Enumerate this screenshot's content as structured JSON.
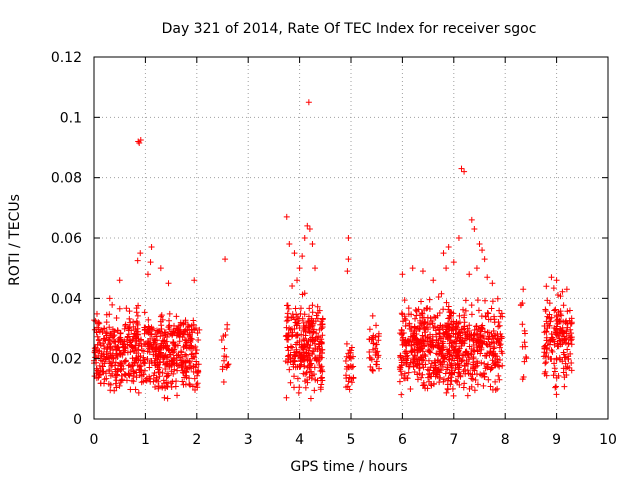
{
  "chart_data": {
    "type": "scatter",
    "title": "Day 321 of 2014, Rate Of TEC Index for receiver sgoc",
    "xlabel": "GPS time / hours",
    "ylabel": "ROTI / TECUs",
    "xlim": [
      0,
      10
    ],
    "ylim": [
      0,
      0.12
    ],
    "x_ticks": [
      "0",
      "1",
      "2",
      "3",
      "4",
      "5",
      "6",
      "7",
      "8",
      "9",
      "10"
    ],
    "y_ticks": [
      "0",
      "0.02",
      "0.04",
      "0.06",
      "0.08",
      "0.1",
      "0.12"
    ],
    "grid": true,
    "marker": "plus",
    "color": "#ff0000",
    "series": [
      {
        "name": "ROTI",
        "clusters": [
          {
            "x_range": [
              0.0,
              2.05
            ],
            "y_range": [
              0.005,
              0.04
            ],
            "count": 700
          },
          {
            "x_range": [
              2.48,
              2.62
            ],
            "y_range": [
              0.009,
              0.04
            ],
            "count": 16
          },
          {
            "x_range": [
              3.73,
              4.45
            ],
            "y_range": [
              0.005,
              0.045
            ],
            "count": 280
          },
          {
            "x_range": [
              4.9,
              5.05
            ],
            "y_range": [
              0.008,
              0.028
            ],
            "count": 30
          },
          {
            "x_range": [
              5.35,
              5.55
            ],
            "y_range": [
              0.01,
              0.037
            ],
            "count": 36
          },
          {
            "x_range": [
              5.95,
              7.95
            ],
            "y_range": [
              0.005,
              0.042
            ],
            "count": 750
          },
          {
            "x_range": [
              8.3,
              8.42
            ],
            "y_range": [
              0.009,
              0.043
            ],
            "count": 14
          },
          {
            "x_range": [
              8.75,
              9.3
            ],
            "y_range": [
              0.006,
              0.045
            ],
            "count": 170
          }
        ],
        "highlights": [
          {
            "x": 0.86,
            "y": 0.092
          },
          {
            "x": 0.88,
            "y": 0.0915
          },
          {
            "x": 0.91,
            "y": 0.0925
          },
          {
            "x": 0.85,
            "y": 0.0525
          },
          {
            "x": 0.9,
            "y": 0.055
          },
          {
            "x": 1.12,
            "y": 0.057
          },
          {
            "x": 1.1,
            "y": 0.052
          },
          {
            "x": 1.05,
            "y": 0.048
          },
          {
            "x": 0.5,
            "y": 0.046
          },
          {
            "x": 1.3,
            "y": 0.05
          },
          {
            "x": 1.45,
            "y": 0.045
          },
          {
            "x": 1.95,
            "y": 0.046
          },
          {
            "x": 2.55,
            "y": 0.053
          },
          {
            "x": 3.75,
            "y": 0.067
          },
          {
            "x": 3.8,
            "y": 0.058
          },
          {
            "x": 3.9,
            "y": 0.055
          },
          {
            "x": 4.0,
            "y": 0.05
          },
          {
            "x": 4.1,
            "y": 0.06
          },
          {
            "x": 4.15,
            "y": 0.064
          },
          {
            "x": 4.2,
            "y": 0.063
          },
          {
            "x": 4.25,
            "y": 0.058
          },
          {
            "x": 4.05,
            "y": 0.054
          },
          {
            "x": 4.3,
            "y": 0.05
          },
          {
            "x": 3.95,
            "y": 0.046
          },
          {
            "x": 4.18,
            "y": 0.105
          },
          {
            "x": 4.95,
            "y": 0.06
          },
          {
            "x": 4.95,
            "y": 0.053
          },
          {
            "x": 4.93,
            "y": 0.049
          },
          {
            "x": 6.0,
            "y": 0.048
          },
          {
            "x": 6.2,
            "y": 0.05
          },
          {
            "x": 6.4,
            "y": 0.049
          },
          {
            "x": 6.6,
            "y": 0.046
          },
          {
            "x": 6.8,
            "y": 0.055
          },
          {
            "x": 6.9,
            "y": 0.057
          },
          {
            "x": 7.0,
            "y": 0.052
          },
          {
            "x": 6.85,
            "y": 0.05
          },
          {
            "x": 7.1,
            "y": 0.06
          },
          {
            "x": 7.15,
            "y": 0.083
          },
          {
            "x": 7.2,
            "y": 0.082
          },
          {
            "x": 7.35,
            "y": 0.066
          },
          {
            "x": 7.4,
            "y": 0.063
          },
          {
            "x": 7.5,
            "y": 0.058
          },
          {
            "x": 7.55,
            "y": 0.056
          },
          {
            "x": 7.6,
            "y": 0.053
          },
          {
            "x": 7.45,
            "y": 0.05
          },
          {
            "x": 7.3,
            "y": 0.048
          },
          {
            "x": 7.65,
            "y": 0.047
          },
          {
            "x": 7.75,
            "y": 0.045
          },
          {
            "x": 8.35,
            "y": 0.043
          },
          {
            "x": 8.9,
            "y": 0.047
          },
          {
            "x": 9.0,
            "y": 0.046
          },
          {
            "x": 8.8,
            "y": 0.044
          },
          {
            "x": 9.2,
            "y": 0.043
          }
        ]
      }
    ]
  }
}
